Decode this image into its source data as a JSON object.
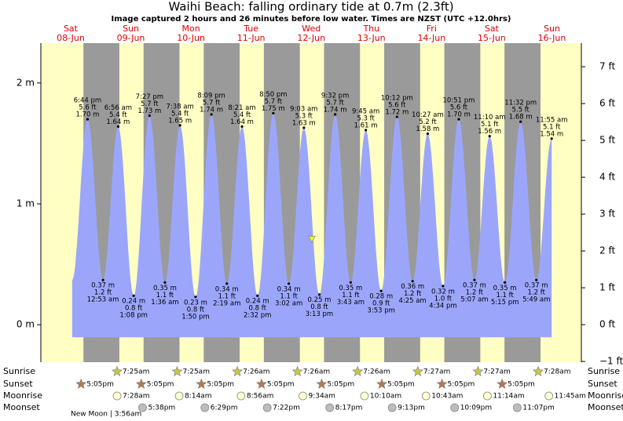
{
  "chart_data": {
    "type": "tide",
    "title": "Waihi Beach: falling  ordinary tide at 0.7m (2.3ft)",
    "subtitle": "Image captured 2 hours and 26 minutes before low water. Times are NZST (UTC +12.0hrs)",
    "days": [
      {
        "name": "Sat",
        "date": "08-Jun"
      },
      {
        "name": "Sun",
        "date": "09-Jun"
      },
      {
        "name": "Mon",
        "date": "10-Jun"
      },
      {
        "name": "Tue",
        "date": "11-Jun"
      },
      {
        "name": "Wed",
        "date": "12-Jun"
      },
      {
        "name": "Thu",
        "date": "13-Jun"
      },
      {
        "name": "Fri",
        "date": "14-Jun"
      },
      {
        "name": "Sat",
        "date": "15-Jun"
      },
      {
        "name": "Sun",
        "date": "16-Jun"
      }
    ],
    "times": [
      "6:44 pm",
      "12:53 am",
      "6:56 am",
      "1:08 pm",
      "7:27 pm",
      "1:36 am",
      "7:38 am",
      "1:50 pm",
      "8:09 pm",
      "2:19 am",
      "8:21 am",
      "2:32 pm",
      "8:50 pm",
      "3:02 am",
      "9:03 am",
      "3:13 pm",
      "9:32 pm",
      "3:43 am",
      "9:45 am",
      "3:53 pm",
      "10:12 pm",
      "4:25 am",
      "10:27 am",
      "4:34 pm",
      "10:51 pm",
      "5:07 am",
      "11:10 am",
      "5:15 pm",
      "11:32 pm",
      "5:49 am",
      "11:55 am"
    ],
    "values": [
      1.7,
      0.37,
      1.64,
      0.24,
      1.73,
      0.35,
      1.65,
      0.23,
      1.74,
      0.34,
      1.64,
      0.24,
      1.75,
      0.34,
      1.63,
      0.25,
      1.74,
      0.35,
      1.61,
      0.28,
      1.72,
      0.36,
      1.58,
      0.32,
      1.7,
      0.37,
      1.56,
      0.35,
      1.68,
      0.37,
      1.54
    ],
    "value_labels": [
      "1.70 m",
      "0.37 m",
      "1.64 m",
      "0.24 m",
      "1.73 m",
      "0.35 m",
      "1.65 m",
      "0.23 m",
      "1.74 m",
      "0.34 m",
      "1.64 m",
      "0.24 m",
      "1.75 m",
      "0.34 m",
      "1.63 m",
      "0.25 m",
      "1.74 m",
      "0.35 m",
      "1.61 m",
      "0.28 m",
      "1.72 m",
      "0.36 m",
      "1.58 m",
      "0.32 m",
      "1.70 m",
      "0.37 m",
      "1.56 m",
      "0.35 m",
      "1.68 m",
      "0.37 m",
      "1.54 m"
    ],
    "ft_labels": [
      "5.6 ft",
      "1.2 ft",
      "5.4 ft",
      "0.8 ft",
      "5.7 ft",
      "1.1 ft",
      "5.4 ft",
      "0.8 ft",
      "5.7 ft",
      "1.1 ft",
      "5.4 ft",
      "0.8 ft",
      "5.7 ft",
      "1.1 ft",
      "5.3 ft",
      "0.8 ft",
      "5.7 ft",
      "1.1 ft",
      "5.3 ft",
      "0.9 ft",
      "5.6 ft",
      "1.2 ft",
      "5.2 ft",
      "1.0 ft",
      "5.6 ft",
      "1.2 ft",
      "5.1 ft",
      "1.1 ft",
      "5.5 ft",
      "1.2 ft",
      "5.1 ft"
    ],
    "current_level": 0.7,
    "ylim": [
      -0.31,
      2.33
    ],
    "yticks": [
      {
        "value": 0,
        "label": "0 m"
      },
      {
        "value": 1,
        "label": "1 m"
      },
      {
        "value": 2,
        "label": "2 m"
      }
    ],
    "y2lim": [
      -1.02,
      7.64
    ],
    "y2ticks": [
      {
        "value": -1,
        "label": "−1 ft"
      },
      {
        "value": 0,
        "label": "0 ft"
      },
      {
        "value": 1,
        "label": "1 ft"
      },
      {
        "value": 2,
        "label": "2 ft"
      },
      {
        "value": 3,
        "label": "3 ft"
      },
      {
        "value": 4,
        "label": "4 ft"
      },
      {
        "value": 5,
        "label": "5 ft"
      },
      {
        "value": 6,
        "label": "6 ft"
      },
      {
        "value": 7,
        "label": "7 ft"
      }
    ],
    "fill_color": "#9ba6fb",
    "day_color": "#ffffc4",
    "night_color": "#9a9a9a",
    "almanac": [
      {
        "label": "Sunrise",
        "times": [
          null,
          "7:25am",
          "7:25am",
          "7:26am",
          "7:26am",
          "7:26am",
          "7:27am",
          "7:27am",
          "7:28am"
        ]
      },
      {
        "label": "Sunset",
        "times": [
          "5:05pm",
          "5:05pm",
          "5:05pm",
          "5:05pm",
          "5:05pm",
          "5:05pm",
          "5:05pm",
          "5:05pm",
          null
        ]
      },
      {
        "label": "Moonrise",
        "times": [
          null,
          "7:28am",
          "8:14am",
          "8:56am",
          "9:34am",
          "10:10am",
          "10:43am",
          "11:14am",
          "11:45am"
        ]
      },
      {
        "label": "Moonset",
        "times": [
          null,
          "5:38pm",
          "6:29pm",
          "7:22pm",
          "8:17pm",
          "9:13pm",
          "10:09pm",
          "11:07pm",
          null
        ]
      }
    ],
    "moon_phase": "New Moon | 3:56am"
  }
}
